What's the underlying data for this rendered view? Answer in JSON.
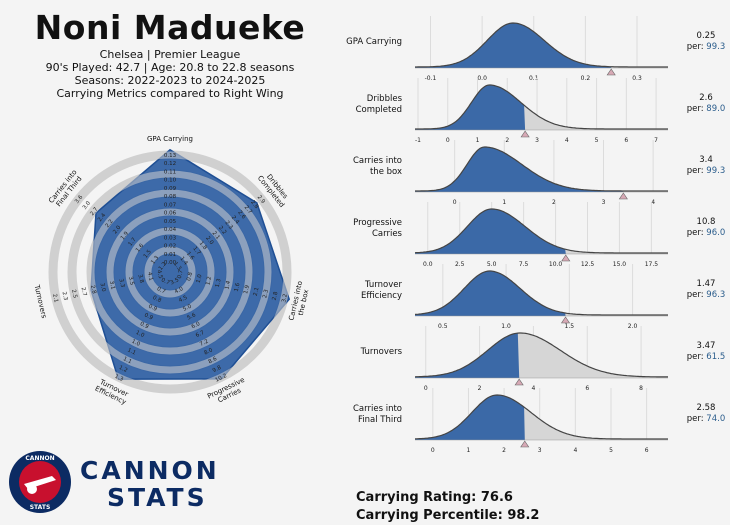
{
  "header": {
    "player_name": "Noni Madueke",
    "club_line": "Chelsea | Premier League",
    "minutes_line": "90's Played: 42.7 | Age: 20.8 to 22.8 seasons",
    "seasons_line": "Seasons: 2022-2023 to 2024-2025",
    "metric_line": "Carrying Metrics compared to Right Wing"
  },
  "brand": {
    "line1": "CANNON",
    "line2": "STATS",
    "badge_top": "CANNON",
    "badge_bottom": "STATS"
  },
  "ratings": {
    "rating_label": "Carrying Rating: 76.6",
    "percentile_label": "Carrying Percentile: 98.2"
  },
  "colors": {
    "blue": "#2e5fa3",
    "blue_dark": "#1f4f94",
    "grey_fill": "#d6d6d6",
    "ring": "#d0d0d0",
    "marker": "#d7a9b5",
    "per_value": "#2b5d8c",
    "brand": "#0c2b63",
    "badge_red": "#c8102e"
  },
  "chart_data": [
    {
      "type": "radar",
      "axes": [
        {
          "label": "GPA Carrying",
          "ticks": [
            "0.00",
            "0.01",
            "0.02",
            "0.03",
            "0.04",
            "0.05",
            "0.06",
            "0.07",
            "0.08",
            "0.09",
            "0.10",
            "0.11",
            "0.12",
            "0.13"
          ],
          "percentile": 99.3
        },
        {
          "label": "Dribbles Completed",
          "ticks": [
            "1.3",
            "1.4",
            "1.6",
            "1.7",
            "1.8",
            "2.0",
            "2.1",
            "2.2",
            "2.3",
            "2.4",
            "2.6",
            "2.7",
            "2.8",
            "2.9"
          ],
          "percentile": 89.0
        },
        {
          "label": "Carries into the box",
          "ticks": [
            "0.7",
            "0.8",
            "1.0",
            "1.2",
            "1.3",
            "1.4",
            "1.6",
            "1.9",
            "2.1",
            "2.3",
            "2.8",
            "3.2"
          ],
          "percentile": 99.3
        },
        {
          "label": "Progressive Carries",
          "ticks": [
            "3.5",
            "4.0",
            "4.5",
            "5.0",
            "5.6",
            "6.0",
            "6.7",
            "7.2",
            "8.0",
            "8.6",
            "9.8",
            "10.2"
          ],
          "percentile": 96.0
        },
        {
          "label": "Turnover Efficiency",
          "ticks": [
            "0.7",
            "0.7",
            "0.8",
            "0.9",
            "0.9",
            "0.9",
            "1.0",
            "1.0",
            "1.1",
            "1.1",
            "1.2",
            "1.3"
          ],
          "percentile": 96.3
        },
        {
          "label": "Turnovers",
          "ticks": [
            "4.5",
            "4.1",
            "3.8",
            "3.5",
            "3.3",
            "3.1",
            "3.0",
            "2.8",
            "2.7",
            "2.5",
            "2.3",
            "2.1"
          ],
          "percentile": 61.5
        },
        {
          "label": "Carries into Final Third",
          "ticks": [
            "1.2",
            "1.3",
            "1.5",
            "1.6",
            "1.7",
            "1.9",
            "2.0",
            "2.2",
            "2.4",
            "2.7",
            "3.0",
            "3.6"
          ],
          "percentile": 74.0
        }
      ]
    },
    {
      "type": "area",
      "panels": [
        {
          "label": [
            "GPA Carrying"
          ],
          "value": "0.25",
          "per": "99.3",
          "xlim": [
            -0.13,
            0.36
          ],
          "ticks": [
            -0.1,
            0.0,
            0.1,
            0.2,
            0.3
          ],
          "tick_labels": [
            "-0.1",
            "0.0",
            "0.1",
            "0.2",
            "0.3"
          ],
          "peak": 0.06,
          "sl": 0.05,
          "sr": 0.06,
          "player": 0.25
        },
        {
          "label": [
            "Dribbles",
            "Completed"
          ],
          "value": "2.6",
          "per": "89.0",
          "xlim": [
            -1.1,
            7.4
          ],
          "ticks": [
            -1,
            0,
            1,
            2,
            3,
            4,
            5,
            6,
            7
          ],
          "tick_labels": [
            "-1",
            "0",
            "1",
            "2",
            "3",
            "4",
            "5",
            "6",
            "7"
          ],
          "peak": 1.4,
          "sl": 0.6,
          "sr": 1.05,
          "player": 2.6
        },
        {
          "label": [
            "Carries into",
            "the box"
          ],
          "value": "3.4",
          "per": "99.3",
          "xlim": [
            -0.8,
            4.3
          ],
          "ticks": [
            0,
            1,
            2,
            3,
            4
          ],
          "tick_labels": [
            "0",
            "1",
            "2",
            "3",
            "4"
          ],
          "peak": 0.6,
          "sl": 0.35,
          "sr": 0.75,
          "player": 3.4
        },
        {
          "label": [
            "Progressive",
            "Carries"
          ],
          "value": "10.8",
          "per": "96.0",
          "xlim": [
            -1.0,
            18.8
          ],
          "ticks": [
            0,
            2.5,
            5,
            7.5,
            10,
            12.5,
            15,
            17.5
          ],
          "tick_labels": [
            "0.0",
            "2.5",
            "5.0",
            "7.5",
            "10.0",
            "12.5",
            "15.0",
            "17.5"
          ],
          "peak": 5.0,
          "sl": 1.9,
          "sr": 2.6,
          "player": 10.8
        },
        {
          "label": [
            "Turnover",
            "Efficiency"
          ],
          "value": "1.47",
          "per": "96.3",
          "xlim": [
            0.28,
            2.28
          ],
          "ticks": [
            0.5,
            1.0,
            1.5,
            2.0
          ],
          "tick_labels": [
            "0.5",
            "1.0",
            "1.5",
            "2.0"
          ],
          "peak": 0.87,
          "sl": 0.2,
          "sr": 0.24,
          "player": 1.47
        },
        {
          "label": [
            "Turnovers"
          ],
          "value": "3.47",
          "per": "61.5",
          "xlim": [
            -0.4,
            9.0
          ],
          "ticks": [
            0,
            2,
            4,
            6,
            8
          ],
          "tick_labels": [
            "0",
            "2",
            "4",
            "6",
            "8"
          ],
          "peak": 3.5,
          "sl": 1.2,
          "sr": 1.5,
          "player": 3.47
        },
        {
          "label": [
            "Carries into",
            "Final Third"
          ],
          "value": "2.58",
          "per": "74.0",
          "xlim": [
            -0.5,
            6.6
          ],
          "ticks": [
            0,
            1,
            2,
            3,
            4,
            5,
            6
          ],
          "tick_labels": [
            "0",
            "1",
            "2",
            "3",
            "4",
            "5",
            "6"
          ],
          "peak": 1.8,
          "sl": 0.7,
          "sr": 0.95,
          "player": 2.58
        }
      ]
    }
  ]
}
